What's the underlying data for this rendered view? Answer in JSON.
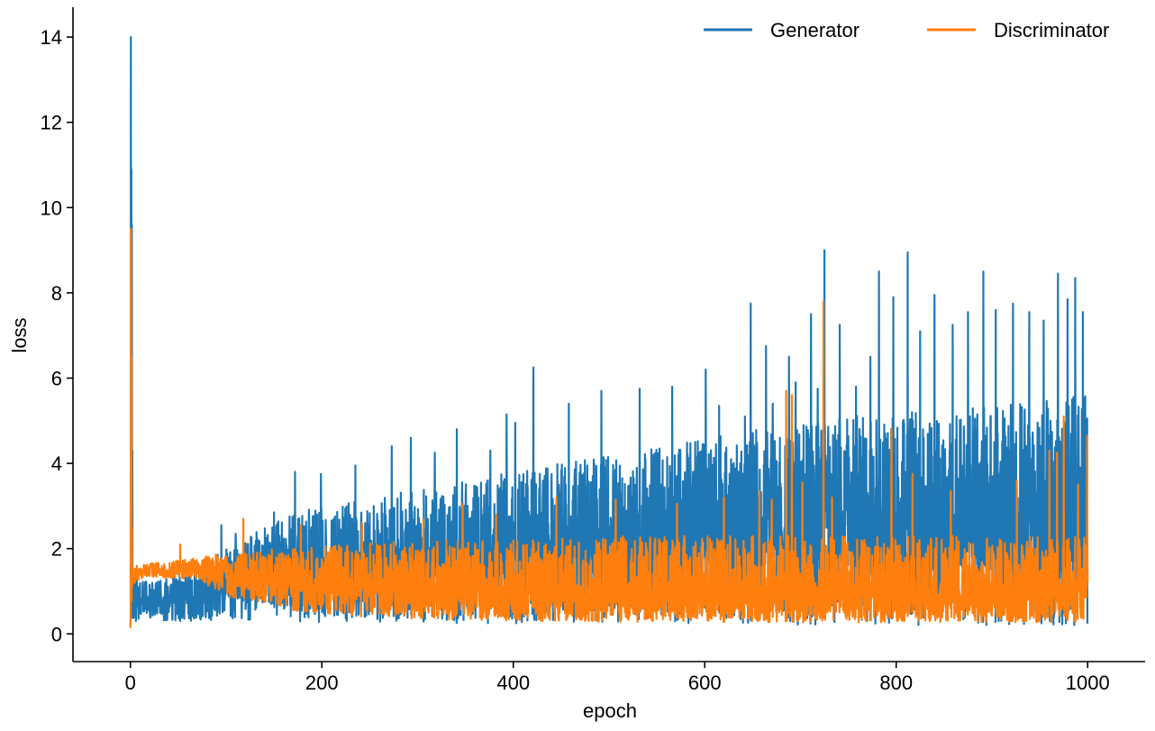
{
  "chart_data": {
    "type": "line",
    "xlabel": "epoch",
    "ylabel": "loss",
    "xlim": [
      -60,
      1060
    ],
    "ylim": [
      -0.65,
      14.7
    ],
    "xticks": [
      0,
      200,
      400,
      600,
      800,
      1000
    ],
    "yticks": [
      0,
      2,
      4,
      6,
      8,
      10,
      12,
      14
    ],
    "grid": false,
    "legend_position": "top-right",
    "legend_columns": 2,
    "x_step": 0.25,
    "series": [
      {
        "name": "Generator",
        "color": "#1f77b4",
        "envelope": {
          "x": [
            0,
            1,
            2,
            5,
            10,
            20,
            40,
            60,
            80,
            100,
            150,
            200,
            300,
            400,
            500,
            600,
            700,
            800,
            900,
            1000
          ],
          "base": [
            0.3,
            0.6,
            0.7,
            0.7,
            0.75,
            0.8,
            0.75,
            0.75,
            0.9,
            1.15,
            1.45,
            1.6,
            1.8,
            2.0,
            2.2,
            2.4,
            2.5,
            2.6,
            2.7,
            2.8
          ],
          "upper": [
            4.0,
            5.0,
            2.0,
            1.3,
            1.2,
            1.3,
            1.3,
            1.4,
            1.7,
            2.0,
            2.7,
            3.0,
            3.4,
            3.8,
            4.2,
            4.6,
            5.0,
            5.2,
            5.4,
            5.6
          ],
          "lower": [
            0.2,
            0.4,
            0.35,
            0.3,
            0.3,
            0.35,
            0.3,
            0.3,
            0.32,
            0.35,
            0.3,
            0.28,
            0.25,
            0.25,
            0.25,
            0.25,
            0.22,
            0.2,
            0.2,
            0.2
          ]
        },
        "peaks": [
          [
            0.5,
            14.0
          ],
          [
            1.0,
            10.9
          ],
          [
            1.5,
            9.6
          ],
          [
            2.0,
            4.3
          ],
          [
            95,
            2.55
          ],
          [
            110,
            2.35
          ],
          [
            150,
            2.85
          ],
          [
            172,
            3.8
          ],
          [
            199,
            3.75
          ],
          [
            235,
            3.95
          ],
          [
            273,
            4.4
          ],
          [
            293,
            4.6
          ],
          [
            318,
            4.25
          ],
          [
            341,
            4.8
          ],
          [
            376,
            4.3
          ],
          [
            393,
            5.15
          ],
          [
            402,
            4.95
          ],
          [
            421,
            6.25
          ],
          [
            458,
            5.4
          ],
          [
            492,
            5.7
          ],
          [
            532,
            5.75
          ],
          [
            566,
            5.8
          ],
          [
            601,
            6.2
          ],
          [
            615,
            5.35
          ],
          [
            642,
            5.1
          ],
          [
            648,
            7.75
          ],
          [
            664,
            6.75
          ],
          [
            671,
            5.4
          ],
          [
            688,
            6.5
          ],
          [
            695,
            5.9
          ],
          [
            711,
            7.5
          ],
          [
            718,
            5.75
          ],
          [
            725,
            9.0
          ],
          [
            741,
            7.25
          ],
          [
            758,
            5.8
          ],
          [
            773,
            6.5
          ],
          [
            782,
            8.5
          ],
          [
            797,
            7.9
          ],
          [
            812,
            8.95
          ],
          [
            825,
            7.1
          ],
          [
            840,
            7.95
          ],
          [
            859,
            7.25
          ],
          [
            875,
            7.55
          ],
          [
            891,
            8.5
          ],
          [
            904,
            7.6
          ],
          [
            922,
            7.75
          ],
          [
            939,
            7.55
          ],
          [
            954,
            7.35
          ],
          [
            969,
            8.45
          ],
          [
            979,
            7.85
          ],
          [
            987,
            8.35
          ],
          [
            995,
            7.55
          ],
          [
            999.5,
            5.05
          ]
        ]
      },
      {
        "name": "Discriminator",
        "color": "#ff7f0e",
        "envelope": {
          "x": [
            0,
            1,
            2,
            5,
            10,
            20,
            40,
            60,
            80,
            100,
            150,
            200,
            300,
            400,
            500,
            600,
            700,
            800,
            900,
            1000
          ],
          "base": [
            0.2,
            1.2,
            1.4,
            1.4,
            1.45,
            1.45,
            1.45,
            1.5,
            1.55,
            1.45,
            1.3,
            1.15,
            1.0,
            0.95,
            0.9,
            0.9,
            0.9,
            0.9,
            0.9,
            0.9
          ],
          "upper": [
            0.6,
            1.8,
            1.6,
            1.65,
            1.65,
            1.65,
            1.7,
            1.75,
            1.85,
            1.9,
            2.0,
            2.1,
            2.2,
            2.2,
            2.3,
            2.3,
            2.3,
            2.3,
            2.3,
            2.3
          ],
          "lower": [
            0.05,
            0.5,
            1.1,
            1.2,
            1.3,
            1.35,
            1.3,
            1.3,
            1.15,
            0.9,
            0.6,
            0.45,
            0.35,
            0.3,
            0.28,
            0.28,
            0.27,
            0.27,
            0.27,
            0.27
          ]
        },
        "peaks": [
          [
            0.5,
            9.5
          ],
          [
            1.0,
            6.5
          ],
          [
            1.5,
            2.5
          ],
          [
            52,
            2.1
          ],
          [
            118,
            2.7
          ],
          [
            178,
            2.55
          ],
          [
            242,
            2.6
          ],
          [
            306,
            2.7
          ],
          [
            347,
            3.05
          ],
          [
            382,
            2.8
          ],
          [
            445,
            3.2
          ],
          [
            507,
            3.15
          ],
          [
            571,
            3.05
          ],
          [
            620,
            3.2
          ],
          [
            657,
            3.35
          ],
          [
            670,
            3.15
          ],
          [
            685,
            5.7
          ],
          [
            691,
            5.6
          ],
          [
            702,
            3.55
          ],
          [
            724,
            7.8
          ],
          [
            733,
            3.2
          ],
          [
            795,
            4.8
          ],
          [
            817,
            3.75
          ],
          [
            857,
            3.35
          ],
          [
            926,
            3.6
          ],
          [
            960,
            4.3
          ],
          [
            968,
            4.25
          ],
          [
            975,
            5.1
          ],
          [
            990,
            3.5
          ],
          [
            999.5,
            4.65
          ]
        ]
      }
    ]
  }
}
